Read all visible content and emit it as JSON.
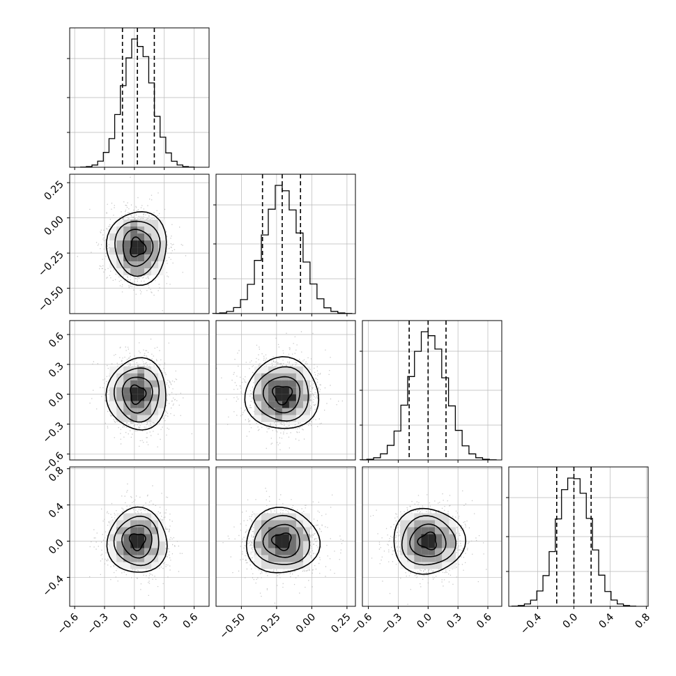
{
  "chart_data": {
    "type": "corner",
    "grid": true,
    "dimensions": 4,
    "quantiles_shown": true,
    "variables": [
      {
        "center": 0.03,
        "sigma": 0.15,
        "quantiles": [
          -0.12,
          0.03,
          0.2
        ],
        "range": [
          -0.65,
          0.75
        ],
        "ticks": [
          "−0.6",
          "−0.3",
          "0.0",
          "0.3",
          "0.6"
        ],
        "tick_values": [
          -0.6,
          -0.3,
          0.0,
          0.3,
          0.6
        ]
      },
      {
        "center": -0.21,
        "sigma": 0.13,
        "quantiles": [
          -0.35,
          -0.21,
          -0.08
        ],
        "range": [
          -0.68,
          0.31
        ],
        "ticks": [
          "−0.50",
          "−0.25",
          "0.00",
          "0.25"
        ],
        "tick_values": [
          -0.5,
          -0.25,
          0.0,
          0.25
        ]
      },
      {
        "center": 0.0,
        "sigma": 0.18,
        "quantiles": [
          -0.19,
          0.0,
          0.18
        ],
        "range": [
          -0.66,
          0.74
        ],
        "ticks": [
          "−0.6",
          "−0.3",
          "0.0",
          "0.3",
          "0.6"
        ],
        "tick_values": [
          -0.6,
          -0.3,
          0.0,
          0.3,
          0.6
        ]
      },
      {
        "center": 0.0,
        "sigma": 0.18,
        "quantiles": [
          -0.19,
          0.0,
          0.19
        ],
        "range": [
          -0.72,
          0.82
        ],
        "ticks": [
          "−0.4",
          "0.0",
          "0.4",
          "0.8"
        ],
        "tick_values": [
          -0.4,
          0.0,
          0.4,
          0.8
        ]
      }
    ],
    "y_axis_ticks": {
      "row_1": [
        "0.25",
        "0.00",
        "−0.25",
        "−0.50"
      ],
      "row_2": [
        "0.6",
        "0.3",
        "0.0",
        "−0.3",
        "−0.6"
      ],
      "row_3": [
        "0.8",
        "0.4",
        "0.0",
        "−0.4"
      ]
    },
    "y_axis_tick_values": {
      "row_1": [
        0.25,
        0.0,
        -0.25,
        -0.5
      ],
      "row_2": [
        0.6,
        0.3,
        0.0,
        -0.3,
        -0.6
      ],
      "row_3": [
        0.8,
        0.4,
        0.0,
        -0.4
      ]
    },
    "x_axis_ticks": {
      "col_0": [
        "−0.6",
        "−0.3",
        "0.0",
        "0.3",
        "0.6"
      ],
      "col_1": [
        "−0.50",
        "−0.25",
        "0.00",
        "0.25"
      ],
      "col_2": [
        "−0.6",
        "−0.3",
        "0.0",
        "0.3",
        "0.6"
      ],
      "col_3": [
        "−0.4",
        "0.0",
        "0.4",
        "0.8"
      ]
    },
    "histogram_bins": 20,
    "contour_levels": [
      "0.5σ",
      "1σ",
      "1.5σ",
      "2σ"
    ],
    "colors": {
      "line": "#000000",
      "points": "#b0b0b0",
      "grid": "#b8b8b8"
    }
  }
}
